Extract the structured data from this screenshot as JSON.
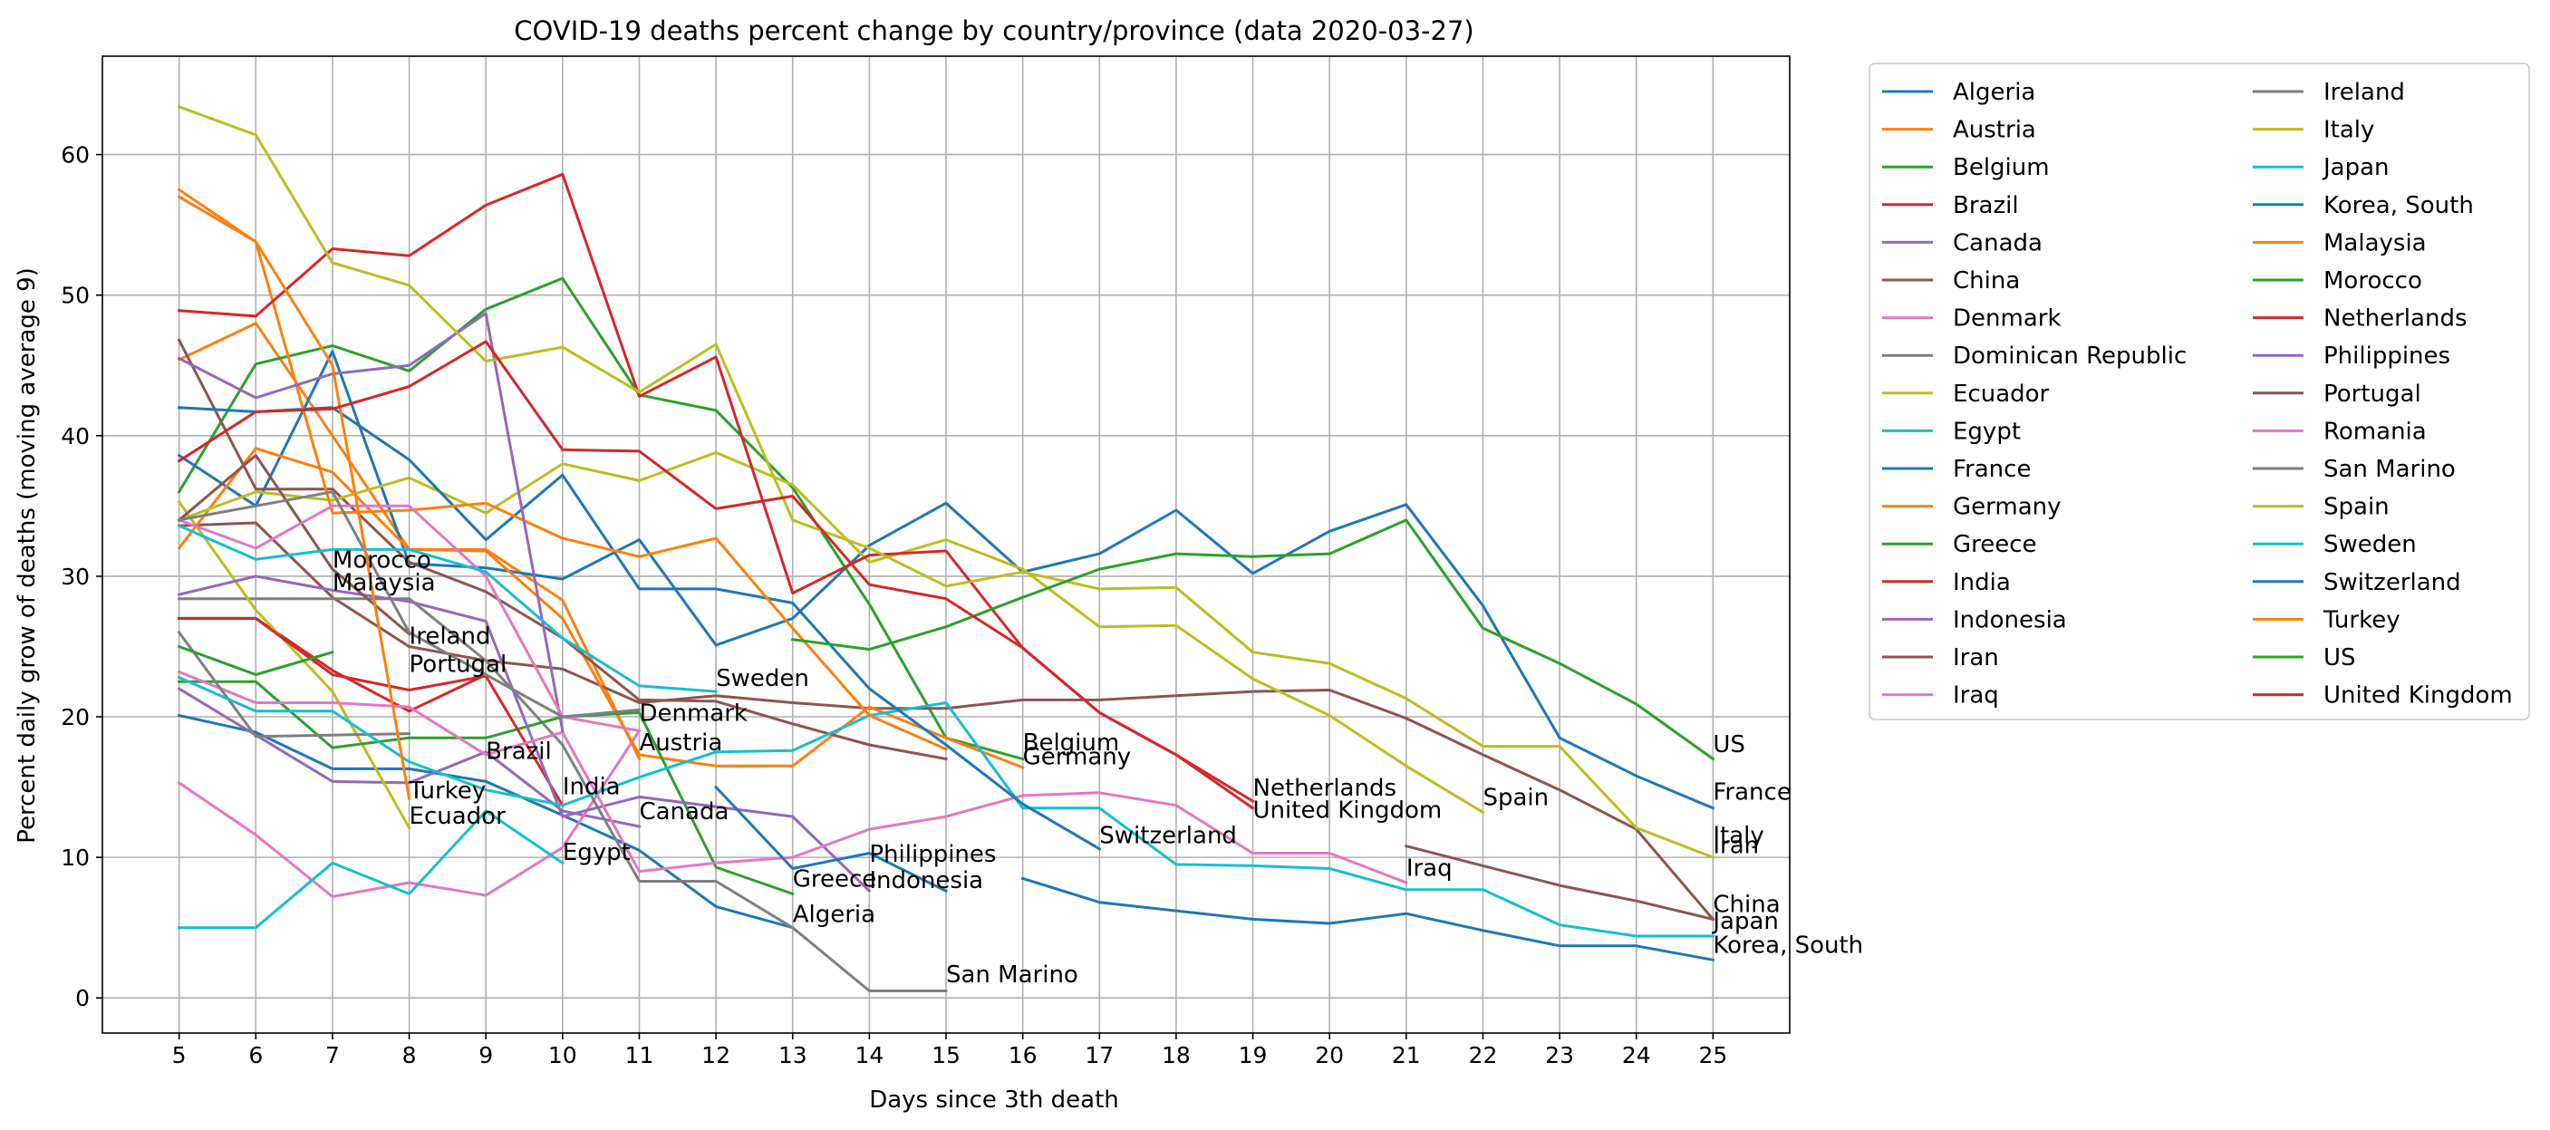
{
  "chart_data": {
    "type": "line",
    "title": "COVID-19 deaths percent change by country/province (data 2020-03-27)",
    "xlabel": "Days since 3th death",
    "ylabel": "Percent daily grow of deaths (moving average 9)",
    "xlim": [
      4,
      26
    ],
    "ylim": [
      -2.5,
      67
    ],
    "xticks": [
      5,
      6,
      7,
      8,
      9,
      10,
      11,
      12,
      13,
      14,
      15,
      16,
      17,
      18,
      19,
      20,
      21,
      22,
      23,
      24,
      25
    ],
    "yticks": [
      0,
      10,
      20,
      30,
      40,
      50,
      60
    ],
    "grid": true,
    "legend_position": "outside-right",
    "series": [
      {
        "name": "Algeria",
        "color": "#1f77b4",
        "x": [
          5,
          6,
          7,
          8,
          9,
          10,
          11,
          12,
          13
        ],
        "values": [
          20.1,
          18.9,
          16.3,
          16.3,
          15.4,
          13.0,
          10.5,
          6.5,
          5.0
        ]
      },
      {
        "name": "Austria",
        "color": "#ff7f0e",
        "x": [
          5,
          6,
          7,
          8,
          9,
          10,
          11
        ],
        "values": [
          45.4,
          48.0,
          40.0,
          31.9,
          31.9,
          28.3,
          17.0
        ]
      },
      {
        "name": "Belgium",
        "color": "#2ca02c",
        "x": [
          5,
          6,
          7,
          8,
          9,
          10,
          11,
          12,
          13,
          14,
          15,
          16
        ],
        "values": [
          36.0,
          45.1,
          46.4,
          44.6,
          49.0,
          51.2,
          42.9,
          41.8,
          36.3,
          28.0,
          18.5,
          17.0
        ]
      },
      {
        "name": "Brazil",
        "color": "#d62728",
        "x": [
          5,
          6,
          7,
          8,
          9
        ],
        "values": [
          27.0,
          27.0,
          23.3,
          20.4,
          23.0
        ]
      },
      {
        "name": "Canada",
        "color": "#9467bd",
        "x": [
          5,
          6,
          7,
          8,
          9,
          10,
          11
        ],
        "values": [
          22.0,
          18.7,
          15.4,
          15.3,
          17.5,
          13.3,
          12.2
        ]
      },
      {
        "name": "China",
        "color": "#8c564b",
        "x": [
          5,
          6,
          7,
          8,
          9,
          10,
          11,
          12,
          13,
          14,
          15,
          16,
          17,
          18,
          19,
          20,
          21,
          22,
          23,
          24,
          25
        ],
        "values": [
          33.6,
          33.8,
          28.5,
          25.0,
          24.0,
          23.4,
          21.0,
          21.5,
          21.0,
          20.6,
          20.6,
          21.2,
          21.2,
          21.5,
          21.8,
          21.9,
          19.9,
          17.3,
          14.8,
          12.0,
          5.6
        ]
      },
      {
        "name": "Denmark",
        "color": "#e377c2",
        "x": [
          5,
          6,
          7,
          8,
          9,
          10,
          11
        ],
        "values": [
          15.3,
          11.6,
          7.2,
          8.2,
          7.3,
          10.7,
          19.0
        ]
      },
      {
        "name": "Dominican Republic",
        "color": "#7f7f7f",
        "x": [
          5,
          6,
          7,
          8,
          9,
          10,
          11,
          12,
          13,
          14,
          15
        ],
        "values": [
          28.4,
          28.4,
          28.4,
          28.4,
          24.0,
          18.0,
          8.3,
          8.3,
          5.0,
          0.5,
          0.5
        ]
      },
      {
        "name": "Ecuador",
        "color": "#bcbd22",
        "x": [
          5,
          6,
          7,
          8
        ],
        "values": [
          35.3,
          27.6,
          21.8,
          12.1
        ]
      },
      {
        "name": "Egypt",
        "color": "#17becf",
        "x": [
          5,
          6,
          7,
          8,
          9,
          10
        ],
        "values": [
          5.0,
          5.0,
          9.6,
          7.4,
          13.3,
          9.6
        ]
      },
      {
        "name": "France",
        "color": "#1f77b4",
        "x": [
          5,
          6,
          7,
          8,
          9,
          10,
          11,
          12,
          13,
          14,
          15,
          16,
          17,
          18,
          19,
          20,
          21,
          22,
          23,
          24,
          25
        ],
        "values": [
          38.6,
          35.0,
          46.0,
          30.9,
          30.6,
          29.8,
          32.6,
          25.1,
          27.0,
          32.2,
          35.2,
          30.3,
          31.6,
          34.7,
          30.2,
          33.2,
          35.1,
          27.9,
          18.5,
          15.8,
          13.5
        ]
      },
      {
        "name": "Germany",
        "color": "#ff7f0e",
        "x": [
          5,
          6,
          7,
          8,
          9,
          10,
          11,
          12,
          13,
          14,
          15,
          16
        ],
        "values": [
          32.0,
          39.1,
          37.4,
          31.9,
          31.8,
          27.0,
          17.3,
          16.5,
          16.5,
          20.7,
          18.5,
          16.4
        ]
      },
      {
        "name": "Greece",
        "color": "#2ca02c",
        "x": [
          5,
          6,
          7,
          8,
          9,
          10,
          11,
          12,
          13
        ],
        "values": [
          22.5,
          22.5,
          17.8,
          18.5,
          18.5,
          20.0,
          20.3,
          9.3,
          7.4
        ]
      },
      {
        "name": "India",
        "color": "#d62728",
        "x": [
          5,
          6,
          7,
          8,
          9,
          10
        ],
        "values": [
          27.0,
          27.0,
          23.0,
          21.9,
          22.9,
          13.7
        ]
      },
      {
        "name": "Indonesia",
        "color": "#9467bd",
        "x": [
          5,
          6,
          7,
          8,
          9,
          10,
          11,
          12,
          13,
          14
        ],
        "values": [
          28.7,
          30.0,
          29.0,
          28.2,
          26.8,
          12.9,
          14.3,
          13.6,
          12.9,
          7.6
        ]
      },
      {
        "name": "Iran",
        "color": "#8c564b",
        "x": [
          5,
          6,
          7,
          8,
          9,
          10,
          11,
          12,
          13,
          14,
          15
        ],
        "values": [
          46.8,
          36.2,
          36.2,
          31.0,
          28.9,
          25.6,
          21.2,
          21.1,
          19.5,
          18.0,
          17.0
        ]
      },
      {
        "name": "Iraq",
        "color": "#e377c2",
        "x": [
          5,
          6,
          7,
          8,
          9,
          10,
          11,
          12,
          13,
          14,
          15,
          16,
          17,
          18,
          19,
          20,
          21
        ],
        "values": [
          23.2,
          21.0,
          21.0,
          20.7,
          17.3,
          18.9,
          9.0,
          9.6,
          10.0,
          12.0,
          12.9,
          14.4,
          14.6,
          13.7,
          10.3,
          10.3,
          8.2
        ]
      },
      {
        "name": "Ireland",
        "color": "#7f7f7f",
        "x": [
          5,
          6,
          7,
          8
        ],
        "values": [
          26.0,
          18.6,
          18.7,
          18.8
        ]
      },
      {
        "name": "Italy",
        "color": "#bcbd22",
        "x": [
          5,
          6,
          7,
          8,
          9,
          10,
          11,
          12,
          13,
          14,
          15,
          16,
          17,
          18,
          19,
          20,
          21,
          22,
          23,
          24,
          25
        ],
        "values": [
          34.0,
          36.0,
          35.4,
          37.0,
          34.5,
          38.0,
          36.8,
          38.8,
          36.5,
          31.0,
          32.6,
          30.5,
          26.4,
          26.5,
          22.7,
          20.1,
          16.5,
          13.2,
          null,
          null,
          null
        ]
      },
      {
        "name": "Japan",
        "color": "#17becf",
        "x": [
          5,
          6,
          7,
          8,
          9,
          10,
          11,
          12,
          13,
          14,
          15,
          16,
          17,
          18,
          19,
          20,
          21,
          22,
          23,
          24,
          25
        ],
        "values": [
          22.8,
          20.4,
          20.4,
          16.8,
          14.8,
          13.7,
          15.7,
          17.5,
          17.6,
          20.1,
          21.0,
          13.5,
          13.5,
          9.5,
          9.4,
          9.2,
          7.7,
          7.7,
          5.2,
          4.4,
          4.4
        ]
      },
      {
        "name": "Korea, South",
        "color": "#1f77b4",
        "x": [
          5,
          6,
          7,
          8,
          9,
          10,
          11,
          12,
          13,
          14,
          15,
          16,
          17,
          18,
          19,
          20,
          21,
          22,
          23,
          24,
          25
        ],
        "values": [
          42.0,
          41.7,
          42.0,
          38.3,
          32.6,
          37.2,
          29.1,
          29.1,
          28.1,
          22.0,
          18.0,
          13.8,
          10.6,
          null,
          null,
          null,
          null,
          null,
          null,
          null,
          null
        ]
      },
      {
        "name": "Malaysia",
        "color": "#ff7f0e",
        "x": [
          5,
          6,
          7,
          8,
          9,
          10,
          11,
          12,
          13,
          14,
          15
        ],
        "values": [
          57.5,
          53.8,
          34.5,
          34.7,
          35.2,
          32.7,
          31.4,
          32.7,
          26.3,
          20.1,
          17.7
        ]
      },
      {
        "name": "Morocco",
        "color": "#2ca02c",
        "x": [
          5,
          6,
          7
        ],
        "values": [
          25.0,
          23.0,
          24.6
        ]
      },
      {
        "name": "Netherlands",
        "color": "#d62728",
        "x": [
          5,
          6,
          7,
          8,
          9,
          10,
          11,
          12,
          13,
          14,
          15,
          16,
          17,
          18,
          19
        ],
        "values": [
          48.9,
          48.5,
          53.3,
          52.8,
          56.4,
          58.6,
          42.8,
          45.6,
          28.8,
          31.5,
          31.8,
          24.9,
          20.3,
          17.3,
          14.0
        ]
      },
      {
        "name": "Philippines",
        "color": "#9467bd",
        "x": [
          5,
          6,
          7,
          8,
          9,
          10
        ],
        "values": [
          45.5,
          42.7,
          44.4,
          45.0,
          48.7,
          19.0
        ]
      },
      {
        "name": "Portugal",
        "color": "#8c564b",
        "x": [
          5,
          6,
          7,
          8
        ],
        "values": [
          34.0,
          38.6,
          30.5,
          25.9
        ]
      },
      {
        "name": "Romania",
        "color": "#e377c2",
        "x": [
          5,
          6,
          7,
          8,
          9,
          10,
          11
        ],
        "values": [
          34.0,
          32.0,
          35.0,
          35.0,
          30.0,
          20.0,
          19.0
        ]
      },
      {
        "name": "San Marino",
        "color": "#7f7f7f",
        "x": [
          5,
          6,
          7,
          8,
          9,
          10,
          11
        ],
        "values": [
          34.0,
          35.0,
          36.0,
          26.0,
          23.0,
          20.0,
          20.5
        ]
      },
      {
        "name": "Spain",
        "color": "#bcbd22",
        "x": [
          5,
          6,
          7,
          8,
          9,
          10,
          11,
          12,
          13,
          14,
          15,
          16,
          17,
          18,
          19,
          20,
          21,
          22,
          23,
          24,
          25
        ],
        "values": [
          63.4,
          61.4,
          52.3,
          50.7,
          45.3,
          46.3,
          43.1,
          46.5,
          34.0,
          32.0,
          29.3,
          30.3,
          29.1,
          29.2,
          24.6,
          23.8,
          21.3,
          17.9,
          17.9,
          12.1,
          10.0
        ]
      },
      {
        "name": "Sweden",
        "color": "#17becf",
        "x": [
          5,
          6,
          7,
          8,
          9,
          10,
          11,
          12
        ],
        "values": [
          33.6,
          31.2,
          31.9,
          31.9,
          30.3,
          25.6,
          22.2,
          21.8
        ]
      },
      {
        "name": "Switzerland",
        "color": "#1f77b4",
        "x": [
          5,
          6,
          7,
          8,
          9,
          10,
          11,
          12,
          13,
          14,
          15,
          16,
          17,
          18,
          19,
          20,
          21,
          22,
          23,
          24,
          25
        ],
        "values": [
          null,
          null,
          null,
          null,
          null,
          null,
          null,
          null,
          null,
          null,
          null,
          null,
          null,
          null,
          null,
          null,
          null,
          null,
          null,
          null,
          null
        ]
      },
      {
        "name": "Turkey",
        "color": "#ff7f0e",
        "x": [
          5,
          6,
          7,
          8
        ],
        "values": [
          57.0,
          53.8,
          45.0,
          14.2
        ]
      },
      {
        "name": "US",
        "color": "#2ca02c",
        "x": [
          13,
          14,
          15,
          16,
          17,
          18,
          19,
          20,
          21,
          22,
          23,
          24,
          25
        ],
        "values": [
          25.5,
          24.8,
          26.4,
          28.5,
          30.5,
          31.6,
          31.4,
          31.6,
          34.0,
          26.3,
          23.8,
          20.9,
          17.0
        ]
      },
      {
        "name": "United Kingdom",
        "color": "#d62728",
        "x": [
          5,
          6,
          7,
          8,
          9,
          10,
          11,
          12,
          13,
          14,
          15,
          16,
          17,
          18,
          19
        ],
        "values": [
          38.2,
          41.7,
          41.9,
          43.5,
          46.7,
          39.0,
          38.9,
          34.8,
          35.7,
          29.4,
          28.4,
          24.9,
          20.3,
          17.3,
          13.5
        ]
      }
    ],
    "extra_lines": [
      {
        "series": "Korea, South",
        "color": "#1f77b4",
        "x": [
          16,
          17,
          18,
          19,
          20,
          21,
          22,
          23,
          24,
          25
        ],
        "values": [
          8.5,
          6.8,
          6.2,
          5.6,
          5.3,
          6.0,
          4.8,
          3.7,
          3.7,
          2.7
        ]
      },
      {
        "series": "Switzerland",
        "color": "#1f77b4",
        "x": [
          12,
          13,
          14,
          15
        ],
        "values": [
          15.0,
          9.2,
          10.3,
          7.6
        ]
      },
      {
        "series": "Italy",
        "color": "#8c564b",
        "x": [
          21,
          22,
          23,
          24,
          25
        ],
        "values": [
          10.8,
          9.4,
          8.0,
          6.9,
          5.6
        ]
      }
    ],
    "annotations": [
      {
        "text": "Morocco",
        "x": 7,
        "y": 30.6
      },
      {
        "text": "Malaysia",
        "x": 7,
        "y": 29.0
      },
      {
        "text": "Ireland",
        "x": 8,
        "y": 25.2
      },
      {
        "text": "Portugal",
        "x": 8,
        "y": 23.2
      },
      {
        "text": "Brazil",
        "x": 9,
        "y": 17.0
      },
      {
        "text": "Turkey",
        "x": 8,
        "y": 14.2
      },
      {
        "text": "Ecuador",
        "x": 8,
        "y": 12.4
      },
      {
        "text": "India",
        "x": 10,
        "y": 14.5
      },
      {
        "text": "Egypt",
        "x": 10,
        "y": 9.8
      },
      {
        "text": "Denmark",
        "x": 11,
        "y": 19.7
      },
      {
        "text": "Austria",
        "x": 11,
        "y": 17.6
      },
      {
        "text": "Canada",
        "x": 11,
        "y": 12.7
      },
      {
        "text": "Sweden",
        "x": 12,
        "y": 22.2
      },
      {
        "text": "Greece",
        "x": 13,
        "y": 7.9
      },
      {
        "text": "Algeria",
        "x": 13,
        "y": 5.4
      },
      {
        "text": "Philippines",
        "x": 14,
        "y": 9.7
      },
      {
        "text": "Indonesia",
        "x": 14,
        "y": 7.8
      },
      {
        "text": "San Marino",
        "x": 15,
        "y": 1.1
      },
      {
        "text": "Belgium",
        "x": 16,
        "y": 17.6
      },
      {
        "text": "Germany",
        "x": 16,
        "y": 16.6
      },
      {
        "text": "Switzerland",
        "x": 17,
        "y": 11.0
      },
      {
        "text": "Netherlands",
        "x": 19,
        "y": 14.4
      },
      {
        "text": "United Kingdom",
        "x": 19,
        "y": 12.8
      },
      {
        "text": "Iraq",
        "x": 21,
        "y": 8.7
      },
      {
        "text": "Spain",
        "x": 22,
        "y": 13.7
      },
      {
        "text": "US",
        "x": 25,
        "y": 17.5
      },
      {
        "text": "France",
        "x": 25,
        "y": 14.1
      },
      {
        "text": "Italy",
        "x": 25,
        "y": 11.0
      },
      {
        "text": "Iran",
        "x": 25,
        "y": 10.3
      },
      {
        "text": "China",
        "x": 25,
        "y": 6.1
      },
      {
        "text": "Japan",
        "x": 25,
        "y": 4.9
      },
      {
        "text": "Korea, South",
        "x": 25,
        "y": 3.2
      }
    ]
  }
}
